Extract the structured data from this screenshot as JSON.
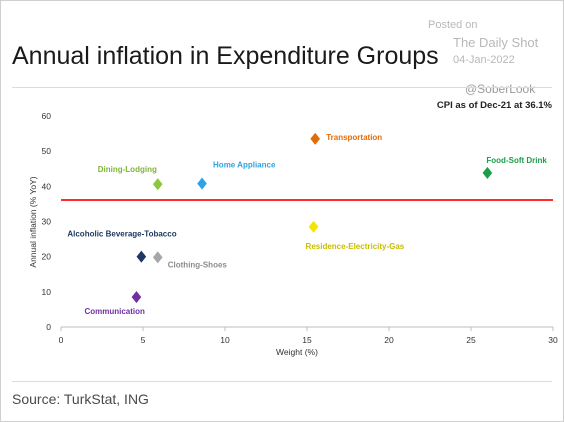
{
  "header": {
    "title": "Annual inflation in Expenditure Groups"
  },
  "watermark": {
    "posted": "Posted on",
    "site": "The Daily Shot",
    "date": "04-Jan-2022",
    "handle": "@SoberLook"
  },
  "footer": {
    "source": "Source: TurkStat, ING"
  },
  "chart_data": {
    "type": "scatter",
    "title": "Annual inflation in Expenditure Groups",
    "xlabel": "Weight (%)",
    "ylabel": "Annual inflation (% YoY)",
    "xlim": [
      0,
      30
    ],
    "ylim": [
      0,
      60
    ],
    "xticks": [
      0,
      5,
      10,
      15,
      20,
      25,
      30
    ],
    "yticks": [
      0,
      10,
      20,
      30,
      40,
      50,
      60
    ],
    "grid": false,
    "reference_line": {
      "label": "CPI as of Dec-21 at 36.1%",
      "value": 36.1,
      "color": "#ff2a2a"
    },
    "points": [
      {
        "name": "Transportation",
        "x": 15.5,
        "y": 53.5,
        "color": "#e36c0a"
      },
      {
        "name": "Food-Soft Drink",
        "x": 26.0,
        "y": 43.8,
        "color": "#1a9e4a"
      },
      {
        "name": "Dining-Lodging",
        "x": 5.9,
        "y": 40.6,
        "color": "#8dc63f"
      },
      {
        "name": "Home Appliance",
        "x": 8.6,
        "y": 40.8,
        "color": "#2ea3e3"
      },
      {
        "name": "Residence-Electricity-Gas",
        "x": 15.4,
        "y": 28.5,
        "color": "#f2e500"
      },
      {
        "name": "Alcoholic Beverage-Tobacco",
        "x": 4.9,
        "y": 20.0,
        "color": "#1f3864"
      },
      {
        "name": "Clothing-Shoes",
        "x": 5.9,
        "y": 19.8,
        "color": "#a6a6a6"
      },
      {
        "name": "Communication",
        "x": 4.6,
        "y": 8.5,
        "color": "#7030a0"
      }
    ]
  }
}
